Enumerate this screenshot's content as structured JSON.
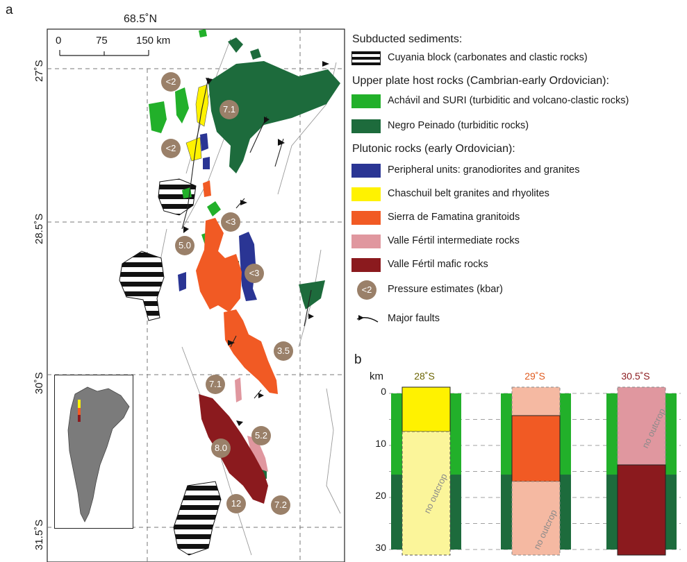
{
  "panel_a_label": "a",
  "panel_b_label": "b",
  "map": {
    "top_label": "68.5˚N",
    "scale": {
      "ticks": [
        "0",
        "75",
        "150 km"
      ]
    },
    "latitudes": [
      "27˚S",
      "28.5˚S",
      "30˚S",
      "31.5˚S"
    ],
    "pressure_badges": [
      "<2",
      "7.1",
      "<2",
      "<3",
      "5.0",
      "<3",
      "3.5",
      "7.1",
      "5.2",
      "8.0",
      "12",
      "7.2"
    ]
  },
  "legend": {
    "subducted_heading": "Subducted sediments:",
    "cuyania": "Cuyania block (carbonates and clastic rocks)",
    "upper_plate_heading": "Upper plate host rocks (Cambrian-early Ordovician):",
    "achavil": "Achávil and SURI (turbiditic and volcano-clastic rocks)",
    "negro": "Negro Peinado (turbiditic rocks)",
    "plutonic_heading": "Plutonic rocks (early Ordovician):",
    "peripheral": "Peripheral units: granodiorites and granites",
    "chaschuil": "Chaschuil belt granites and rhyolites",
    "famatina": "Sierra de Famatina granitoids",
    "vf_intermediate": "Valle Fértil intermediate rocks",
    "vf_mafic": "Valle Fértil mafic rocks",
    "pressure_badge": "<2",
    "pressure": "Pressure estimates (kbar)",
    "faults": "Major faults"
  },
  "colors": {
    "achavil": "#22b02a",
    "negro": "#1d6b3c",
    "peripheral": "#2a3594",
    "chaschuil": "#fff200",
    "chaschuil_pale": "#fbf59a",
    "famatina": "#f15a24",
    "famatina_pale": "#f5b9a2",
    "vf_intermediate": "#e0979f",
    "vf_mafic": "#8b1a1e",
    "badge": "#9a8069"
  },
  "columns": {
    "y_unit": "km",
    "y_ticks": [
      "0",
      "10",
      "20",
      "30"
    ],
    "headers": [
      "28˚S",
      "29˚S",
      "30.5˚S"
    ],
    "no_outcrop": "no outcrop"
  }
}
